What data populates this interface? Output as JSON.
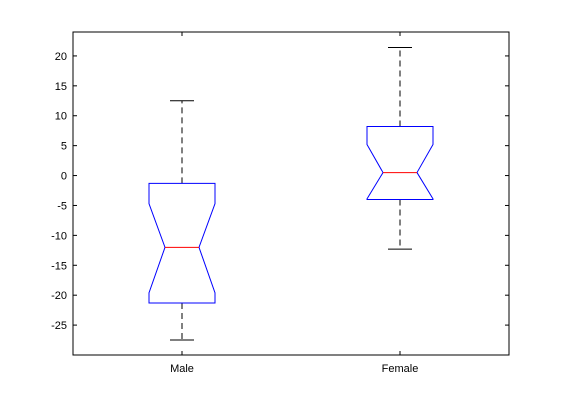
{
  "chart_data": {
    "type": "boxplot",
    "notched": true,
    "categories": [
      "Male",
      "Female"
    ],
    "boxes": [
      {
        "category": "Male",
        "whisker_low": -27.5,
        "q1": -21.3,
        "notch_low": -19.6,
        "median": -12.0,
        "notch_high": -4.7,
        "q3": -1.3,
        "whisker_high": 12.5
      },
      {
        "category": "Female",
        "whisker_low": -12.3,
        "q1": -4.0,
        "notch_low": -3.9,
        "median": 0.5,
        "notch_high": 5.2,
        "q3": 8.2,
        "whisker_high": 21.4
      }
    ],
    "yticks": [
      -25,
      -20,
      -15,
      -10,
      -5,
      0,
      5,
      10,
      15,
      20
    ],
    "ylim": [
      -30,
      24
    ],
    "grid": false,
    "colors": {
      "box": "#0000ff",
      "median": "#ff0000",
      "whisker": "#000000",
      "axes": "#000000"
    }
  }
}
